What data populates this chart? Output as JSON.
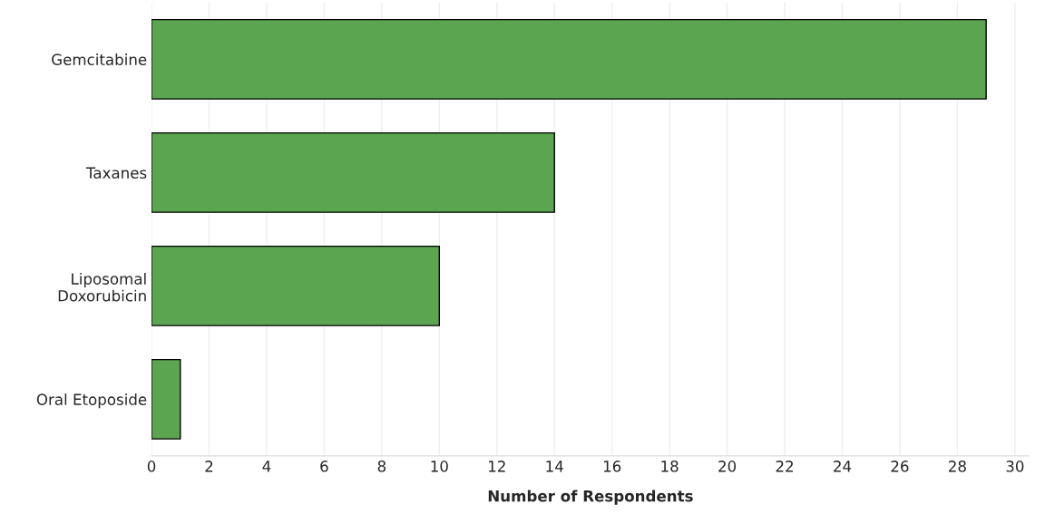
{
  "chart_data": {
    "type": "bar",
    "orientation": "horizontal",
    "categories": [
      "Gemcitabine",
      "Taxanes",
      "Liposomal\nDoxorubicin",
      "Oral Etoposide"
    ],
    "values": [
      29,
      14,
      10,
      1
    ],
    "color": "#5ba551",
    "xlabel": "Number of Respondents",
    "xlim": [
      0,
      30.5
    ],
    "xticks": [
      0,
      2,
      4,
      6,
      8,
      10,
      12,
      14,
      16,
      18,
      20,
      22,
      24,
      26,
      28,
      30
    ],
    "grid": "x",
    "legend": false
  }
}
